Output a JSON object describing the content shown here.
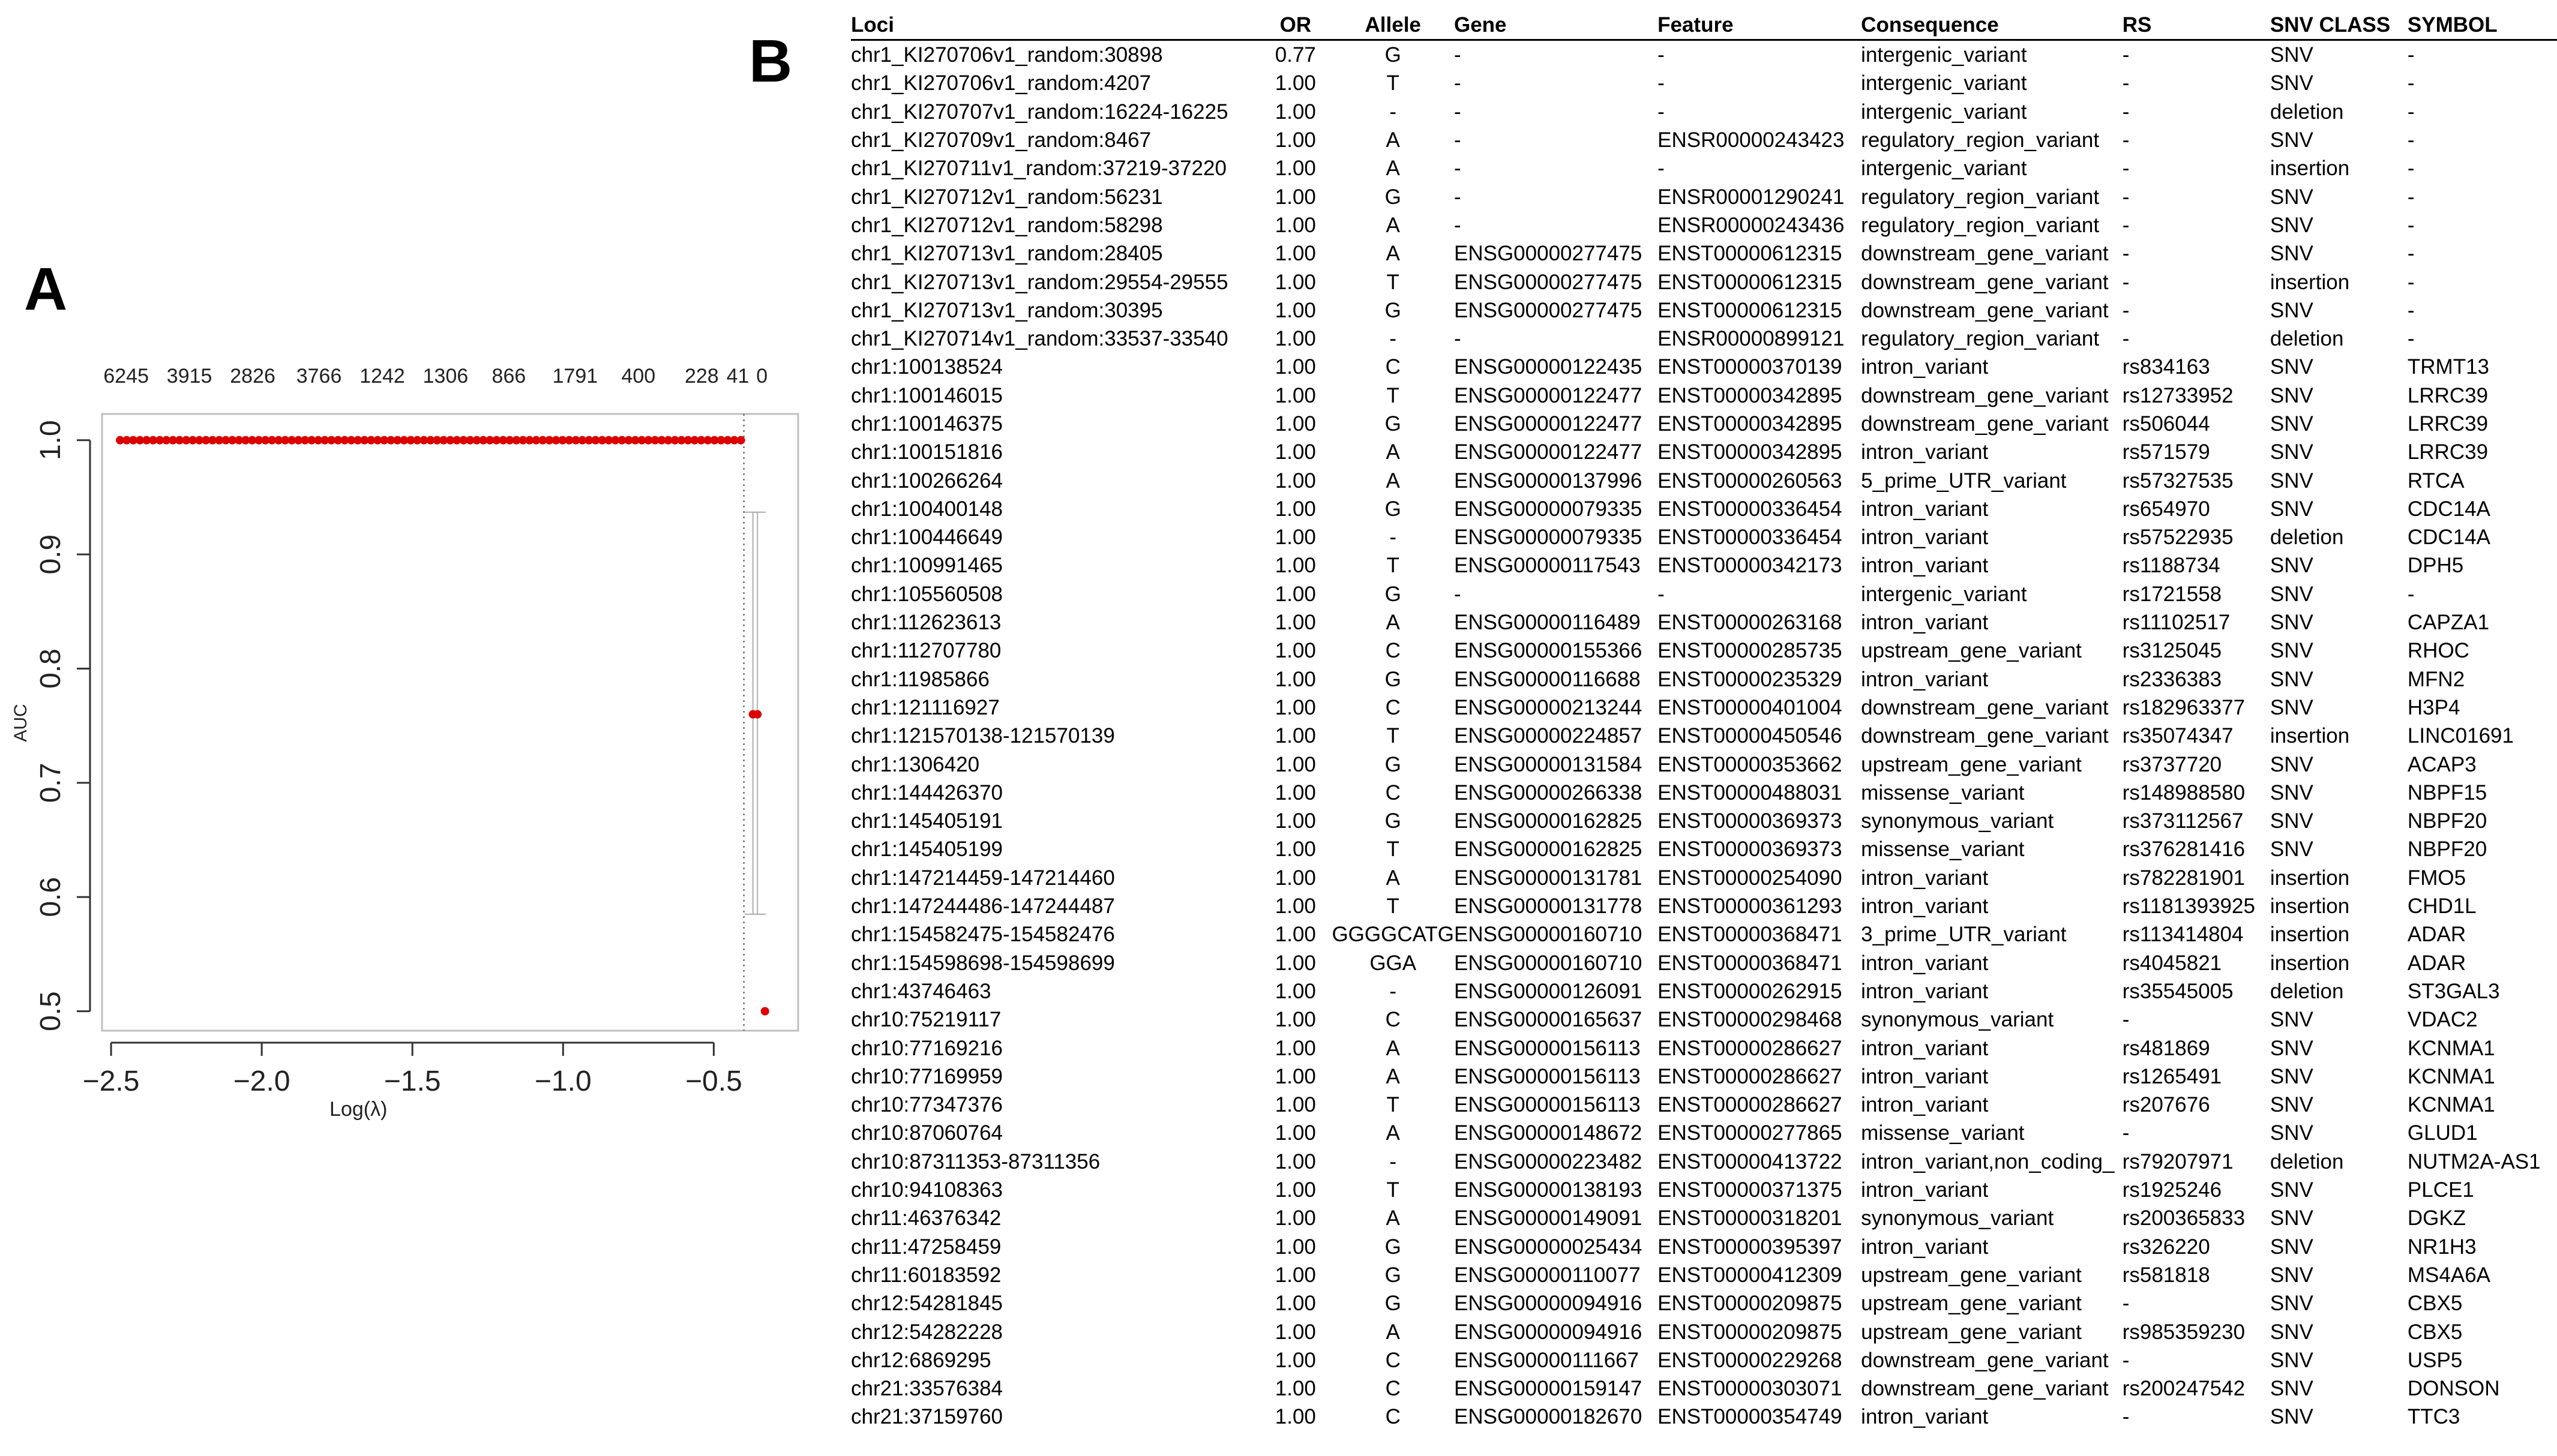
{
  "panel_a": {
    "label": "A",
    "chart_data": {
      "type": "scatter",
      "xlabel": "Log(λ)",
      "ylabel": "AUC",
      "xlim": [
        -2.53,
        -0.22
      ],
      "ylim": [
        0.483,
        1.023
      ],
      "x_ticks": [
        "−2.5",
        "−2.0",
        "−1.5",
        "−1.0",
        "−0.5"
      ],
      "x_tick_values": [
        -2.5,
        -2.0,
        -1.5,
        -1.0,
        -0.5
      ],
      "y_ticks": [
        "0.5",
        "0.6",
        "0.7",
        "0.8",
        "0.9",
        "1.0"
      ],
      "y_tick_values": [
        0.5,
        0.6,
        0.7,
        0.8,
        0.9,
        1.0
      ],
      "top_counts": [
        "6245",
        "3915",
        "2826",
        "3766",
        "1242",
        "1306",
        "866",
        "1791",
        "400",
        "228",
        "41",
        "0"
      ],
      "top_count_positions": [
        -2.45,
        -2.24,
        -2.03,
        -1.81,
        -1.6,
        -1.39,
        -1.18,
        -0.96,
        -0.75,
        -0.54,
        -0.42,
        -0.34
      ],
      "vline_x": -0.4,
      "point_color": "#dd0000",
      "flat_series": {
        "x_start": -2.47,
        "x_end": -0.41,
        "y": 1.0,
        "count": 95
      },
      "points": [
        {
          "x": -0.37,
          "y": 0.76,
          "lower": 0.585,
          "upper": 0.937
        },
        {
          "x": -0.355,
          "y": 0.76,
          "lower": 0.585,
          "upper": 0.937
        },
        {
          "x": -0.33,
          "y": 0.5,
          "lower": 0.5,
          "upper": 0.5
        }
      ]
    }
  },
  "panel_b": {
    "label": "B",
    "headers": [
      "Loci",
      "OR",
      "Allele",
      "Gene",
      "Feature",
      "Consequence",
      "RS",
      "SNV CLASS",
      "SYMBOL"
    ],
    "rows": [
      [
        "chr1_KI270706v1_random:30898",
        "0.77",
        "G",
        "-",
        "-",
        "intergenic_variant",
        "-",
        "SNV",
        "-"
      ],
      [
        "chr1_KI270706v1_random:4207",
        "1.00",
        "T",
        "-",
        "-",
        "intergenic_variant",
        "-",
        "SNV",
        "-"
      ],
      [
        "chr1_KI270707v1_random:16224-16225",
        "1.00",
        "-",
        "-",
        "-",
        "intergenic_variant",
        "-",
        "deletion",
        "-"
      ],
      [
        "chr1_KI270709v1_random:8467",
        "1.00",
        "A",
        "-",
        "ENSR00000243423",
        "regulatory_region_variant",
        "-",
        "SNV",
        "-"
      ],
      [
        "chr1_KI270711v1_random:37219-37220",
        "1.00",
        "A",
        "-",
        "-",
        "intergenic_variant",
        "-",
        "insertion",
        "-"
      ],
      [
        "chr1_KI270712v1_random:56231",
        "1.00",
        "G",
        "-",
        "ENSR00001290241",
        "regulatory_region_variant",
        "-",
        "SNV",
        "-"
      ],
      [
        "chr1_KI270712v1_random:58298",
        "1.00",
        "A",
        "-",
        "ENSR00000243436",
        "regulatory_region_variant",
        "-",
        "SNV",
        "-"
      ],
      [
        "chr1_KI270713v1_random:28405",
        "1.00",
        "A",
        "ENSG00000277475",
        "ENST00000612315",
        "downstream_gene_variant",
        "-",
        "SNV",
        "-"
      ],
      [
        "chr1_KI270713v1_random:29554-29555",
        "1.00",
        "T",
        "ENSG00000277475",
        "ENST00000612315",
        "downstream_gene_variant",
        "-",
        "insertion",
        "-"
      ],
      [
        "chr1_KI270713v1_random:30395",
        "1.00",
        "G",
        "ENSG00000277475",
        "ENST00000612315",
        "downstream_gene_variant",
        "-",
        "SNV",
        "-"
      ],
      [
        "chr1_KI270714v1_random:33537-33540",
        "1.00",
        "-",
        "-",
        "ENSR00000899121",
        "regulatory_region_variant",
        "-",
        "deletion",
        "-"
      ],
      [
        "chr1:100138524",
        "1.00",
        "C",
        "ENSG00000122435",
        "ENST00000370139",
        "intron_variant",
        "rs834163",
        "SNV",
        "TRMT13"
      ],
      [
        "chr1:100146015",
        "1.00",
        "T",
        "ENSG00000122477",
        "ENST00000342895",
        "downstream_gene_variant",
        "rs12733952",
        "SNV",
        "LRRC39"
      ],
      [
        "chr1:100146375",
        "1.00",
        "G",
        "ENSG00000122477",
        "ENST00000342895",
        "downstream_gene_variant",
        "rs506044",
        "SNV",
        "LRRC39"
      ],
      [
        "chr1:100151816",
        "1.00",
        "A",
        "ENSG00000122477",
        "ENST00000342895",
        "intron_variant",
        "rs571579",
        "SNV",
        "LRRC39"
      ],
      [
        "chr1:100266264",
        "1.00",
        "A",
        "ENSG00000137996",
        "ENST00000260563",
        "5_prime_UTR_variant",
        "rs57327535",
        "SNV",
        "RTCA"
      ],
      [
        "chr1:100400148",
        "1.00",
        "G",
        "ENSG00000079335",
        "ENST00000336454",
        "intron_variant",
        "rs654970",
        "SNV",
        "CDC14A"
      ],
      [
        "chr1:100446649",
        "1.00",
        "-",
        "ENSG00000079335",
        "ENST00000336454",
        "intron_variant",
        "rs57522935",
        "deletion",
        "CDC14A"
      ],
      [
        "chr1:100991465",
        "1.00",
        "T",
        "ENSG00000117543",
        "ENST00000342173",
        "intron_variant",
        "rs1188734",
        "SNV",
        "DPH5"
      ],
      [
        "chr1:105560508",
        "1.00",
        "G",
        "-",
        "-",
        "intergenic_variant",
        "rs1721558",
        "SNV",
        "-"
      ],
      [
        "chr1:112623613",
        "1.00",
        "A",
        "ENSG00000116489",
        "ENST00000263168",
        "intron_variant",
        "rs11102517",
        "SNV",
        "CAPZA1"
      ],
      [
        "chr1:112707780",
        "1.00",
        "C",
        "ENSG00000155366",
        "ENST00000285735",
        "upstream_gene_variant",
        "rs3125045",
        "SNV",
        "RHOC"
      ],
      [
        "chr1:11985866",
        "1.00",
        "G",
        "ENSG00000116688",
        "ENST00000235329",
        "intron_variant",
        "rs2336383",
        "SNV",
        "MFN2"
      ],
      [
        "chr1:121116927",
        "1.00",
        "C",
        "ENSG00000213244",
        "ENST00000401004",
        "downstream_gene_variant",
        "rs182963377",
        "SNV",
        "H3P4"
      ],
      [
        "chr1:121570138-121570139",
        "1.00",
        "T",
        "ENSG00000224857",
        "ENST00000450546",
        "downstream_gene_variant",
        "rs35074347",
        "insertion",
        "LINC01691"
      ],
      [
        "chr1:1306420",
        "1.00",
        "G",
        "ENSG00000131584",
        "ENST00000353662",
        "upstream_gene_variant",
        "rs3737720",
        "SNV",
        "ACAP3"
      ],
      [
        "chr1:144426370",
        "1.00",
        "C",
        "ENSG00000266338",
        "ENST00000488031",
        "missense_variant",
        "rs148988580",
        "SNV",
        "NBPF15"
      ],
      [
        "chr1:145405191",
        "1.00",
        "G",
        "ENSG00000162825",
        "ENST00000369373",
        "synonymous_variant",
        "rs373112567",
        "SNV",
        "NBPF20"
      ],
      [
        "chr1:145405199",
        "1.00",
        "T",
        "ENSG00000162825",
        "ENST00000369373",
        "missense_variant",
        "rs376281416",
        "SNV",
        "NBPF20"
      ],
      [
        "chr1:147214459-147214460",
        "1.00",
        "A",
        "ENSG00000131781",
        "ENST00000254090",
        "intron_variant",
        "rs782281901",
        "insertion",
        "FMO5"
      ],
      [
        "chr1:147244486-147244487",
        "1.00",
        "T",
        "ENSG00000131778",
        "ENST00000361293",
        "intron_variant",
        "rs1181393925",
        "insertion",
        "CHD1L"
      ],
      [
        "chr1:154582475-154582476",
        "1.00",
        "GGGGCATG",
        "ENSG00000160710",
        "ENST00000368471",
        "3_prime_UTR_variant",
        "rs113414804",
        "insertion",
        "ADAR"
      ],
      [
        "chr1:154598698-154598699",
        "1.00",
        "GGA",
        "ENSG00000160710",
        "ENST00000368471",
        "intron_variant",
        "rs4045821",
        "insertion",
        "ADAR"
      ],
      [
        "chr1:43746463",
        "1.00",
        "-",
        "ENSG00000126091",
        "ENST00000262915",
        "intron_variant",
        "rs35545005",
        "deletion",
        "ST3GAL3"
      ],
      [
        "chr10:75219117",
        "1.00",
        "C",
        "ENSG00000165637",
        "ENST00000298468",
        "synonymous_variant",
        "-",
        "SNV",
        "VDAC2"
      ],
      [
        "chr10:77169216",
        "1.00",
        "A",
        "ENSG00000156113",
        "ENST00000286627",
        "intron_variant",
        "rs481869",
        "SNV",
        "KCNMA1"
      ],
      [
        "chr10:77169959",
        "1.00",
        "A",
        "ENSG00000156113",
        "ENST00000286627",
        "intron_variant",
        "rs1265491",
        "SNV",
        "KCNMA1"
      ],
      [
        "chr10:77347376",
        "1.00",
        "T",
        "ENSG00000156113",
        "ENST00000286627",
        "intron_variant",
        "rs207676",
        "SNV",
        "KCNMA1"
      ],
      [
        "chr10:87060764",
        "1.00",
        "A",
        "ENSG00000148672",
        "ENST00000277865",
        "missense_variant",
        "-",
        "SNV",
        "GLUD1"
      ],
      [
        "chr10:87311353-87311356",
        "1.00",
        "-",
        "ENSG00000223482",
        "ENST00000413722",
        "intron_variant,non_coding_",
        "rs79207971",
        "deletion",
        "NUTM2A-AS1"
      ],
      [
        "chr10:94108363",
        "1.00",
        "T",
        "ENSG00000138193",
        "ENST00000371375",
        "intron_variant",
        "rs1925246",
        "SNV",
        "PLCE1"
      ],
      [
        "chr11:46376342",
        "1.00",
        "A",
        "ENSG00000149091",
        "ENST00000318201",
        "synonymous_variant",
        "rs200365833",
        "SNV",
        "DGKZ"
      ],
      [
        "chr11:47258459",
        "1.00",
        "G",
        "ENSG00000025434",
        "ENST00000395397",
        "intron_variant",
        "rs326220",
        "SNV",
        "NR1H3"
      ],
      [
        "chr11:60183592",
        "1.00",
        "G",
        "ENSG00000110077",
        "ENST00000412309",
        "upstream_gene_variant",
        "rs581818",
        "SNV",
        "MS4A6A"
      ],
      [
        "chr12:54281845",
        "1.00",
        "G",
        "ENSG00000094916",
        "ENST00000209875",
        "upstream_gene_variant",
        "-",
        "SNV",
        "CBX5"
      ],
      [
        "chr12:54282228",
        "1.00",
        "A",
        "ENSG00000094916",
        "ENST00000209875",
        "upstream_gene_variant",
        "rs985359230",
        "SNV",
        "CBX5"
      ],
      [
        "chr12:6869295",
        "1.00",
        "C",
        "ENSG00000111667",
        "ENST00000229268",
        "downstream_gene_variant",
        "-",
        "SNV",
        "USP5"
      ],
      [
        "chr21:33576384",
        "1.00",
        "C",
        "ENSG00000159147",
        "ENST00000303071",
        "downstream_gene_variant",
        "rs200247542",
        "SNV",
        "DONSON"
      ],
      [
        "chr21:37159760",
        "1.00",
        "C",
        "ENSG00000182670",
        "ENST00000354749",
        "intron_variant",
        "-",
        "SNV",
        "TTC3"
      ]
    ]
  }
}
